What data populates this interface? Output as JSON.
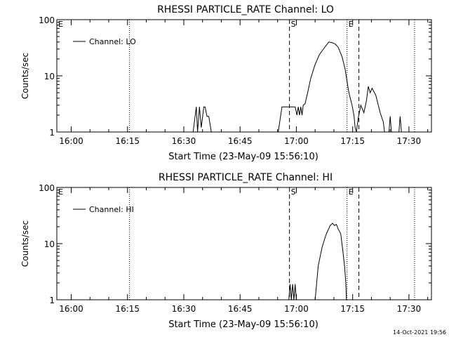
{
  "chart_data": [
    {
      "type": "line",
      "title": "RHESSI PARTICLE_RATE Channel: LO",
      "xlabel": "Start Time (23-May-09 15:56:10)",
      "ylabel": "Counts/sec",
      "yscale": "log",
      "xlim": [
        "15:56:10",
        "17:36:00"
      ],
      "ylim": [
        1,
        100
      ],
      "xticks": [
        "16:00",
        "16:15",
        "16:30",
        "16:45",
        "17:00",
        "17:15",
        "17:30"
      ],
      "yticks": [
        "1",
        "10",
        "100"
      ],
      "legend": "Channel: LO",
      "legend_position": "top-left",
      "markers": [
        {
          "label": "E",
          "time": "15:56:10",
          "style": "dotted"
        },
        {
          "label": "",
          "time": "16:15:30",
          "style": "dotted"
        },
        {
          "label": "S",
          "time": "16:58:10",
          "style": "dashed"
        },
        {
          "label": "E",
          "time": "17:13:30",
          "style": "dotted"
        },
        {
          "label": "",
          "time": "17:16:40",
          "style": "dashed"
        },
        {
          "label": "",
          "time": "17:31:30",
          "style": "dotted"
        }
      ],
      "series": [
        {
          "name": "Channel: LO",
          "segments": [
            [
              [
                "16:32:30",
                1
              ],
              [
                "16:33:20",
                2.8
              ],
              [
                "16:33:40",
                1
              ],
              [
                "16:34:10",
                2.8
              ],
              [
                "16:34:40",
                1.2
              ],
              [
                "16:35:20",
                2.8
              ],
              [
                "16:35:40",
                2.8
              ],
              [
                "16:36:10",
                1.9
              ],
              [
                "16:36:40",
                1.9
              ],
              [
                "16:37:20",
                1
              ]
            ],
            [
              [
                "16:55:10",
                1
              ],
              [
                "16:56:10",
                2.8
              ],
              [
                "16:59:40",
                2.8
              ],
              [
                "17:00:10",
                2
              ],
              [
                "17:00:30",
                2.8
              ],
              [
                "17:00:50",
                2
              ],
              [
                "17:01:10",
                2.8
              ],
              [
                "17:01:30",
                2
              ],
              [
                "17:01:50",
                3
              ],
              [
                "17:02:20",
                3.2
              ],
              [
                "17:03:00",
                5
              ],
              [
                "17:03:50",
                9
              ],
              [
                "17:05:00",
                16
              ],
              [
                "17:06:10",
                24
              ],
              [
                "17:07:40",
                33
              ],
              [
                "17:08:40",
                40
              ],
              [
                "17:09:30",
                39
              ],
              [
                "17:10:20",
                37
              ],
              [
                "17:11:10",
                32
              ],
              [
                "17:12:10",
                22
              ],
              [
                "17:13:00",
                13
              ],
              [
                "17:14:00",
                5
              ],
              [
                "17:14:50",
                3
              ],
              [
                "17:15:20",
                2
              ],
              [
                "17:15:40",
                1.2
              ],
              [
                "17:16:00",
                1
              ],
              [
                "17:16:30",
                1.8
              ],
              [
                "17:17:10",
                3
              ],
              [
                "17:18:00",
                2.2
              ],
              [
                "17:18:40",
                3.6
              ],
              [
                "17:19:10",
                6.5
              ],
              [
                "17:19:40",
                5
              ],
              [
                "17:20:10",
                6
              ],
              [
                "17:21:10",
                4.5
              ],
              [
                "17:22:20",
                2.2
              ],
              [
                "17:23:10",
                1.5
              ],
              [
                "17:23:30",
                1
              ]
            ],
            [
              [
                "17:24:40",
                1
              ],
              [
                "17:25:00",
                1.9
              ],
              [
                "17:25:20",
                1
              ]
            ],
            [
              [
                "17:27:20",
                1
              ],
              [
                "17:27:40",
                1.9
              ],
              [
                "17:28:00",
                1
              ]
            ]
          ]
        }
      ]
    },
    {
      "type": "line",
      "title": "RHESSI PARTICLE_RATE Channel: HI",
      "xlabel": "Start Time (23-May-09 15:56:10)",
      "ylabel": "Counts/sec",
      "yscale": "log",
      "xlim": [
        "15:56:10",
        "17:36:00"
      ],
      "ylim": [
        1,
        100
      ],
      "xticks": [
        "16:00",
        "16:15",
        "16:30",
        "16:45",
        "17:00",
        "17:15",
        "17:30"
      ],
      "yticks": [
        "1",
        "10",
        "100"
      ],
      "legend": "Channel: HI",
      "legend_position": "top-left",
      "markers": [
        {
          "label": "E",
          "time": "15:56:10",
          "style": "dotted"
        },
        {
          "label": "",
          "time": "16:15:30",
          "style": "dotted"
        },
        {
          "label": "S",
          "time": "16:58:10",
          "style": "dashed"
        },
        {
          "label": "E",
          "time": "17:13:30",
          "style": "dotted"
        },
        {
          "label": "",
          "time": "17:16:40",
          "style": "dashed"
        },
        {
          "label": "",
          "time": "17:31:30",
          "style": "dotted"
        }
      ],
      "series": [
        {
          "name": "Channel: HI",
          "segments": [
            [
              [
                "16:58:00",
                1
              ],
              [
                "16:58:20",
                1.9
              ],
              [
                "16:58:40",
                1
              ],
              [
                "16:59:00",
                1.9
              ],
              [
                "16:59:20",
                1
              ],
              [
                "16:59:40",
                1.9
              ],
              [
                "17:00:00",
                1
              ]
            ],
            [
              [
                "17:05:00",
                1
              ],
              [
                "17:05:50",
                4
              ],
              [
                "17:06:50",
                8.5
              ],
              [
                "17:07:50",
                14
              ],
              [
                "17:09:00",
                21
              ],
              [
                "17:09:40",
                23
              ],
              [
                "17:10:10",
                21
              ],
              [
                "17:10:40",
                22
              ],
              [
                "17:11:10",
                18
              ],
              [
                "17:11:50",
                15
              ],
              [
                "17:12:20",
                8
              ],
              [
                "17:12:50",
                4
              ],
              [
                "17:13:10",
                2
              ],
              [
                "17:13:20",
                1
              ]
            ]
          ]
        }
      ]
    }
  ],
  "footer": {
    "timestamp": "14-Oct-2021 19:56"
  }
}
